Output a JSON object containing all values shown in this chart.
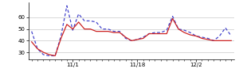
{
  "blue_y": [
    48,
    33,
    28,
    27,
    27,
    44,
    70,
    49,
    63,
    57,
    57,
    56,
    50,
    50,
    48,
    48,
    42,
    40,
    41,
    43,
    46,
    47,
    47,
    49,
    61,
    50,
    49,
    47,
    44,
    43,
    42,
    40,
    44,
    51,
    44
  ],
  "red_y": [
    39,
    33,
    30,
    28,
    27,
    42,
    54,
    50,
    56,
    50,
    50,
    48,
    48,
    48,
    47,
    47,
    43,
    40,
    41,
    42,
    46,
    46,
    46,
    46,
    59,
    50,
    47,
    45,
    44,
    42,
    41,
    40,
    40,
    40,
    40
  ],
  "xtick_positions": [
    7,
    18,
    28
  ],
  "xtick_labels": [
    "11/1",
    "11/18",
    "12/2"
  ],
  "ytick_positions": [
    30,
    40,
    50,
    60
  ],
  "ytick_labels": [
    "30",
    "40",
    "50",
    "60"
  ],
  "ylim": [
    24,
    73
  ],
  "xlim": [
    -0.5,
    34.5
  ],
  "blue_color": "#4444cc",
  "red_color": "#cc2222",
  "linewidth": 0.9,
  "background_color": "#ffffff"
}
